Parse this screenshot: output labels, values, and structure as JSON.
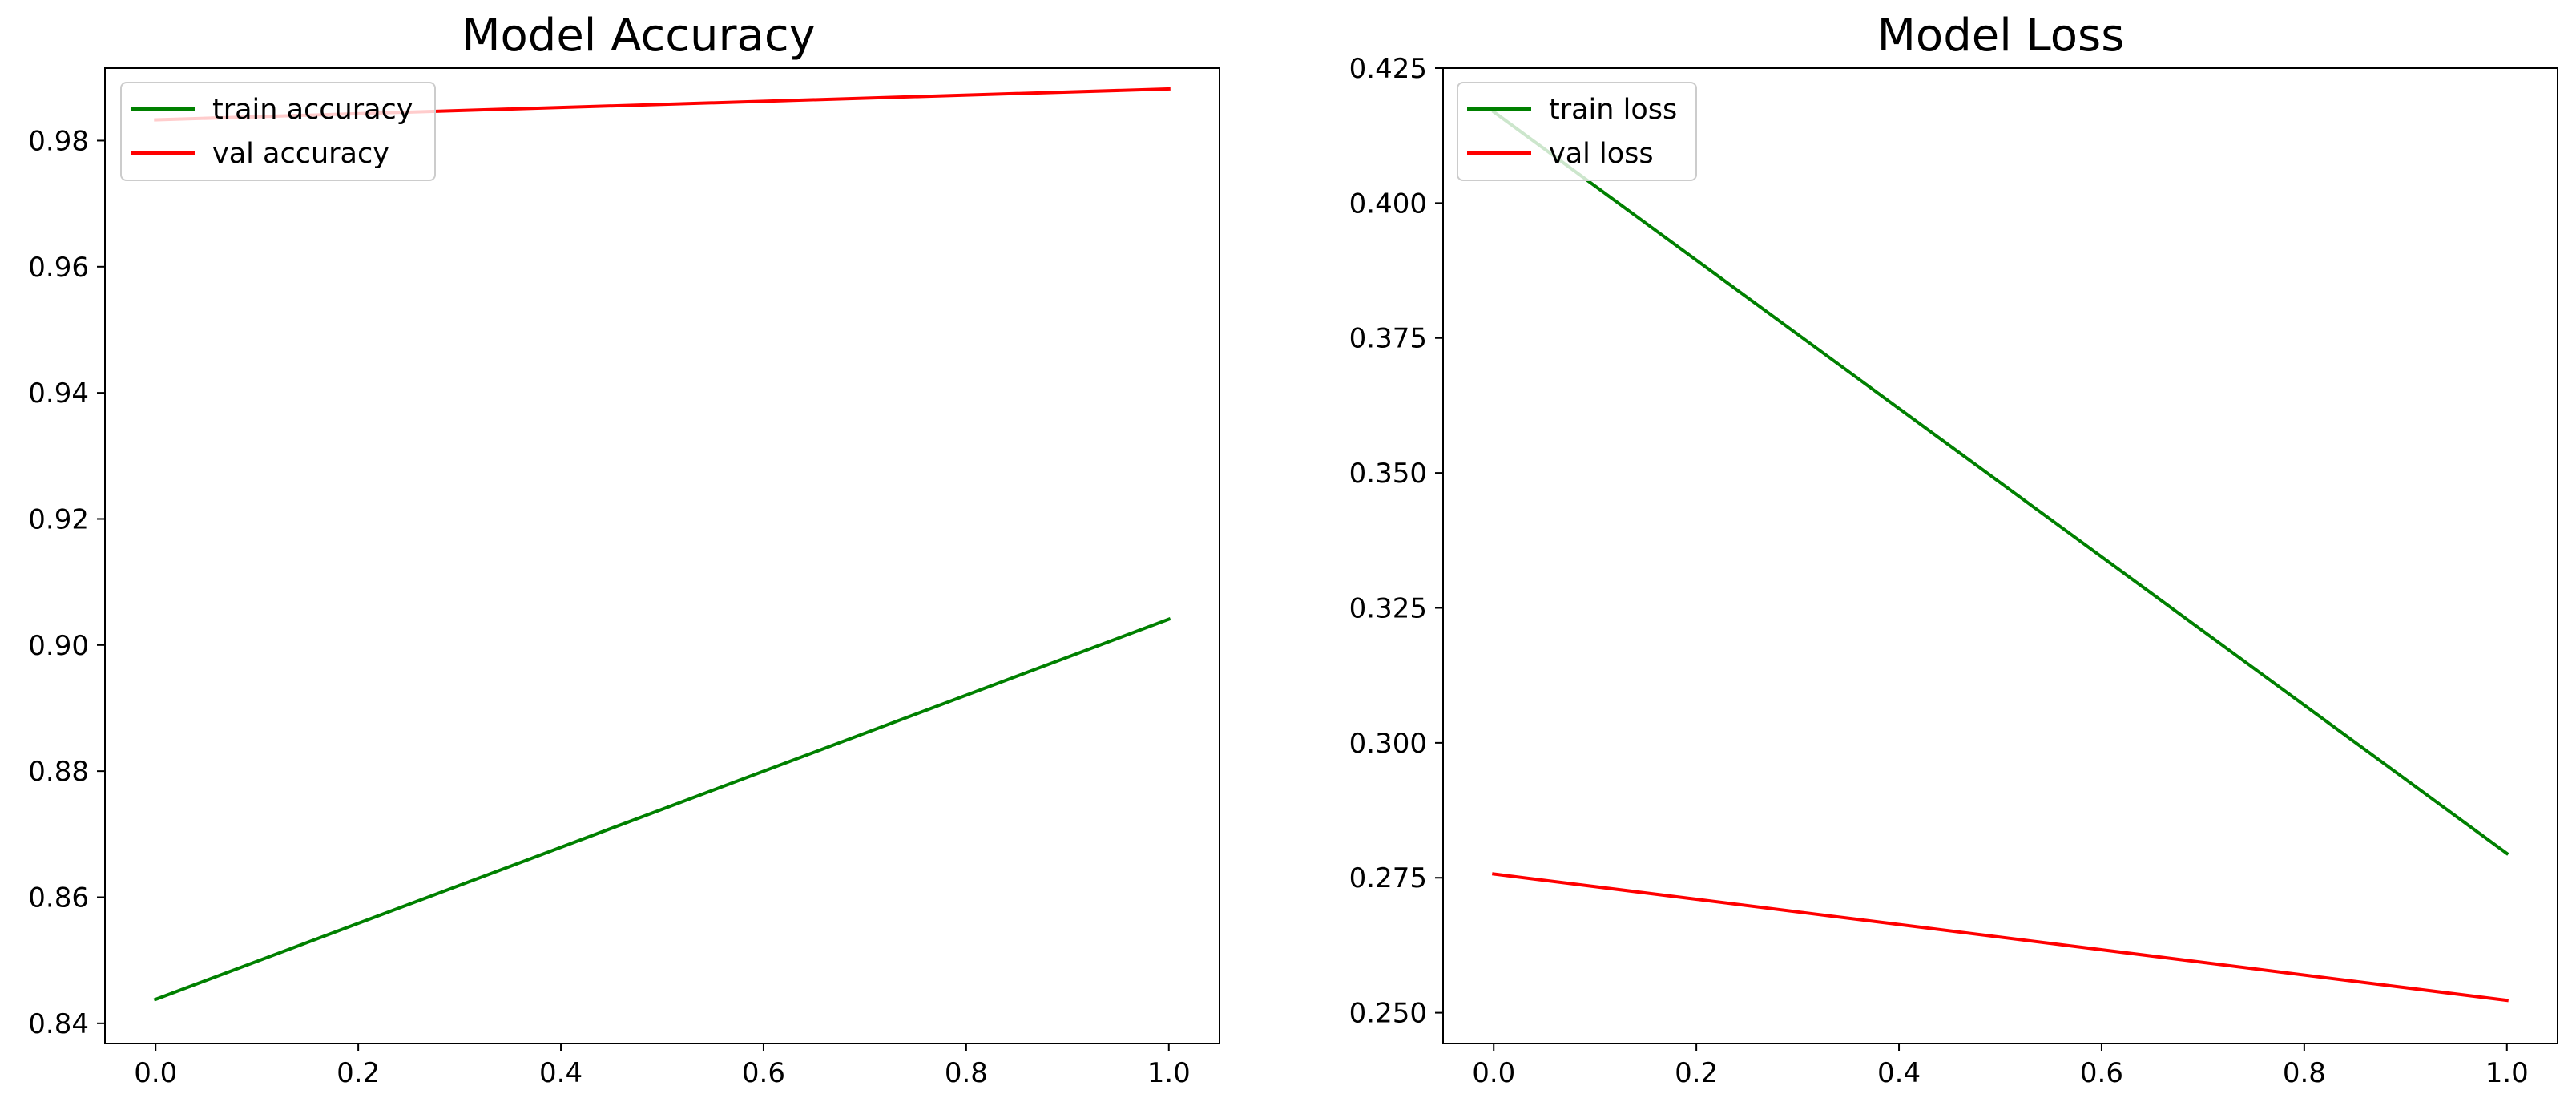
{
  "chart_data": [
    {
      "type": "line",
      "title": "Model Accuracy",
      "xlabel": "",
      "ylabel": "",
      "x": [
        0.0,
        1.0
      ],
      "xlim": [
        -0.05,
        1.05
      ],
      "ylim": [
        0.8368,
        0.9915
      ],
      "xticks": [
        0.0,
        0.2,
        0.4,
        0.6,
        0.8,
        1.0
      ],
      "xtick_labels": [
        "0.0",
        "0.2",
        "0.4",
        "0.6",
        "0.8",
        "1.0"
      ],
      "yticks": [
        0.84,
        0.86,
        0.88,
        0.9,
        0.92,
        0.94,
        0.96,
        0.98
      ],
      "ytick_labels": [
        "0.84",
        "0.86",
        "0.88",
        "0.90",
        "0.92",
        "0.94",
        "0.96",
        "0.98"
      ],
      "grid": false,
      "legend_position": "top-left",
      "series": [
        {
          "name": "train accuracy",
          "color": "#008000",
          "values": [
            0.8438,
            0.9041
          ]
        },
        {
          "name": "val accuracy",
          "color": "#ff0000",
          "values": [
            0.9833,
            0.9882
          ]
        }
      ]
    },
    {
      "type": "line",
      "title": "Model Loss",
      "xlabel": "",
      "ylabel": "",
      "x": [
        0.0,
        1.0
      ],
      "xlim": [
        -0.05,
        1.05
      ],
      "ylim": [
        0.2443,
        0.425
      ],
      "xticks": [
        0.0,
        0.2,
        0.4,
        0.6,
        0.8,
        1.0
      ],
      "xtick_labels": [
        "0.0",
        "0.2",
        "0.4",
        "0.6",
        "0.8",
        "1.0"
      ],
      "yticks": [
        0.25,
        0.275,
        0.3,
        0.325,
        0.35,
        0.375,
        0.4,
        0.425
      ],
      "ytick_labels": [
        "0.250",
        "0.275",
        "0.300",
        "0.325",
        "0.350",
        "0.375",
        "0.400",
        "0.425"
      ],
      "grid": false,
      "legend_position": "top-left",
      "series": [
        {
          "name": "train loss",
          "color": "#008000",
          "values": [
            0.4169,
            0.2795
          ]
        },
        {
          "name": "val loss",
          "color": "#ff0000",
          "values": [
            0.2757,
            0.2523
          ]
        }
      ]
    }
  ]
}
